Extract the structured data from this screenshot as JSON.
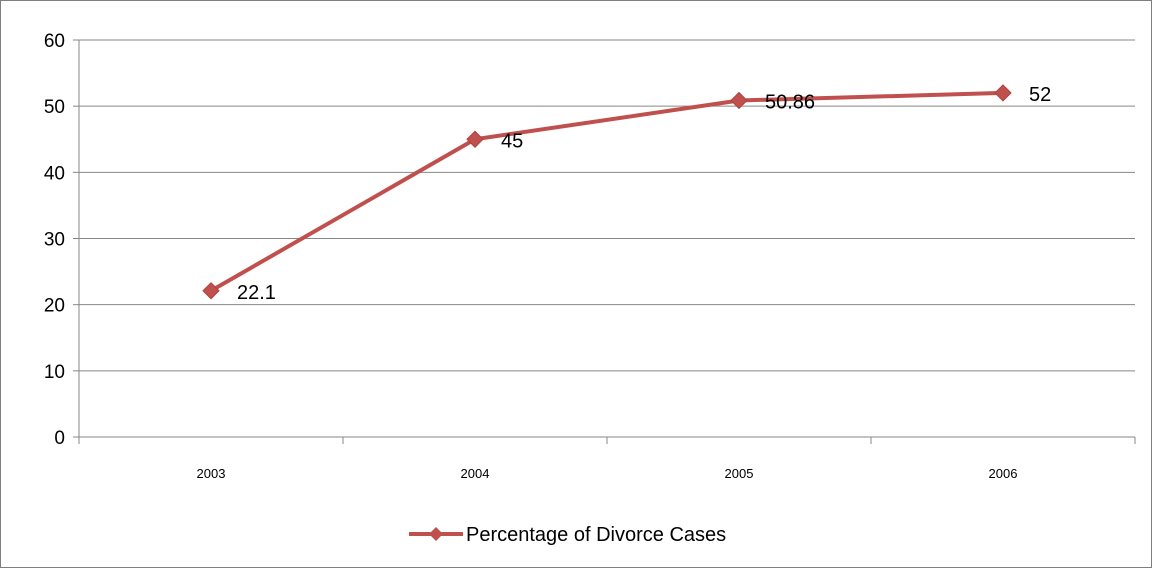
{
  "chart_data": {
    "type": "line",
    "title": "",
    "xlabel": "",
    "ylabel": "",
    "categories": [
      "2003",
      "2004",
      "2005",
      "2006"
    ],
    "series": [
      {
        "name": "Percentage of Divorce Cases",
        "values": [
          22.1,
          45,
          50.86,
          52
        ],
        "data_labels": [
          "22.1",
          "45",
          "50.86",
          "52"
        ],
        "color": "#c0504d"
      }
    ],
    "ylim": [
      0,
      60
    ],
    "y_ticks": [
      "0",
      "10",
      "20",
      "30",
      "40",
      "50",
      "60"
    ],
    "grid": "horizontal",
    "legend_position": "bottom",
    "marker": "diamond"
  }
}
